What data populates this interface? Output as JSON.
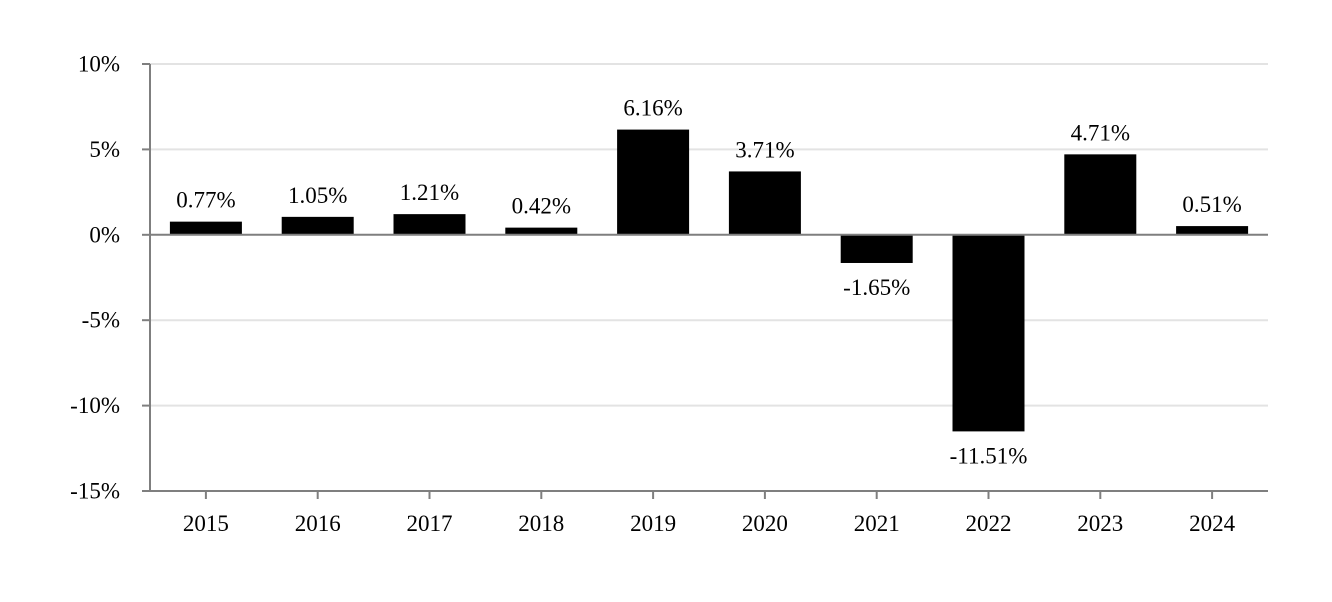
{
  "chart_data": {
    "type": "bar",
    "title": "",
    "xlabel": "",
    "ylabel": "",
    "categories": [
      "2015",
      "2016",
      "2017",
      "2018",
      "2019",
      "2020",
      "2021",
      "2022",
      "2023",
      "2024"
    ],
    "values": [
      0.77,
      1.05,
      1.21,
      0.42,
      6.16,
      3.71,
      -1.65,
      -11.51,
      4.71,
      0.51
    ],
    "data_labels": [
      "0.77%",
      "1.05%",
      "1.21%",
      "0.42%",
      "6.16%",
      "3.71%",
      "-1.65%",
      "-11.51%",
      "4.71%",
      "0.51%"
    ],
    "ylim": [
      -15,
      10
    ],
    "yticks": [
      10,
      5,
      0,
      -5,
      -10,
      -15
    ],
    "ytick_labels": [
      "10%",
      "5%",
      "0%",
      "-5%",
      "-10%",
      "-15%"
    ],
    "grid": true,
    "legend": "none",
    "colors": {
      "bar": "#000000",
      "grid": "#e3e3e3",
      "axis": "#7f7f7f",
      "text": "#000000"
    }
  }
}
